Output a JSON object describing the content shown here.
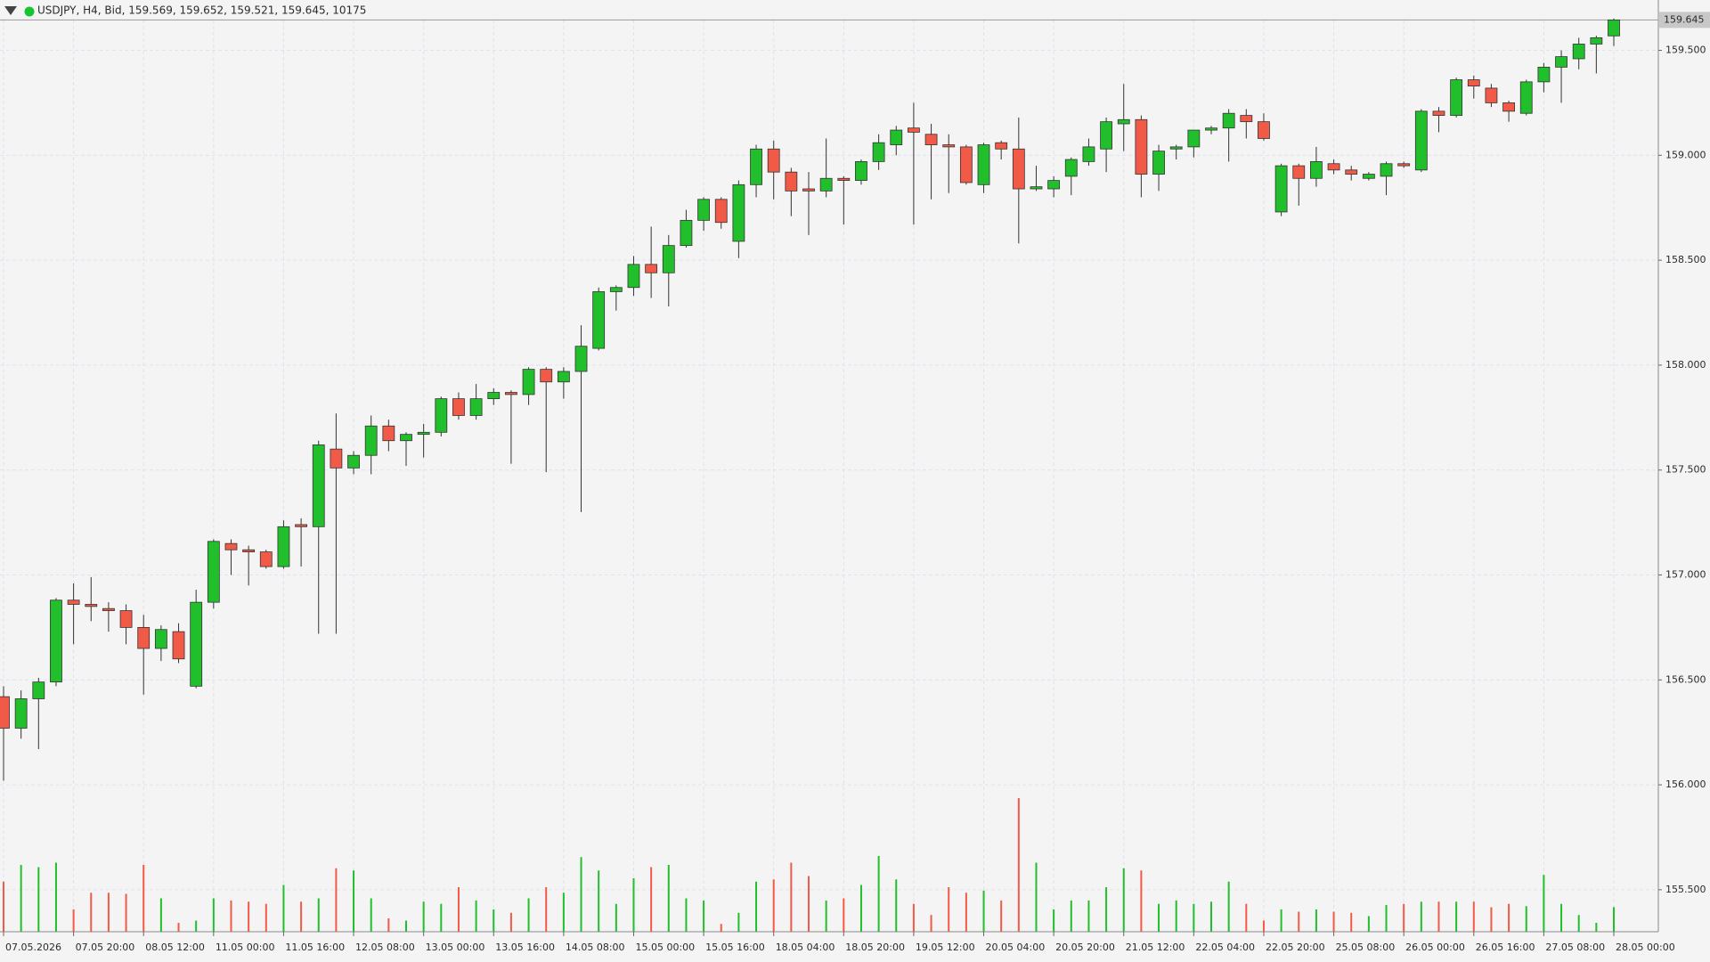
{
  "chart_data": {
    "type": "candlestick",
    "title": "USDJPY, H4, Bid, 159.569, 159.652, 159.521, 159.645, 10175",
    "x": [
      "07.05.2026",
      null,
      null,
      null,
      "07.05 20:00",
      null,
      null,
      null,
      "08.05 12:00",
      null,
      null,
      null,
      "11.05 00:00",
      null,
      null,
      null,
      "11.05 16:00",
      null,
      null,
      null,
      "12.05 08:00",
      null,
      null,
      null,
      "13.05 00:00",
      null,
      null,
      null,
      "13.05 16:00",
      null,
      null,
      null,
      "14.05 08:00",
      null,
      null,
      null,
      "15.05 00:00",
      null,
      null,
      null,
      "15.05 16:00",
      null,
      null,
      null,
      "18.05 04:00",
      null,
      null,
      null,
      "18.05 20:00",
      null,
      null,
      null,
      "19.05 12:00",
      null,
      null,
      null,
      "20.05 04:00",
      null,
      null,
      null,
      "20.05 20:00",
      null,
      null,
      null,
      "21.05 12:00",
      null,
      null,
      null,
      "22.05 04:00",
      null,
      null,
      null,
      "22.05 20:00",
      null,
      null,
      null,
      "25.05 08:00",
      null,
      null,
      null,
      "26.05 00:00",
      null,
      null,
      null,
      "26.05 16:00",
      null,
      null,
      null,
      "27.05 08:00",
      null,
      null,
      null,
      "28.05 00:00"
    ],
    "open": [
      156.42,
      156.27,
      156.41,
      156.49,
      156.88,
      156.86,
      156.84,
      156.83,
      156.75,
      156.65,
      156.73,
      156.47,
      156.87,
      157.15,
      157.12,
      157.11,
      157.04,
      157.24,
      157.23,
      157.6,
      157.51,
      157.57,
      157.71,
      157.64,
      157.67,
      157.68,
      157.84,
      157.76,
      157.84,
      157.87,
      157.86,
      157.98,
      157.92,
      157.97,
      158.08,
      158.35,
      158.37,
      158.48,
      158.44,
      158.57,
      158.69,
      158.79,
      158.59,
      158.86,
      159.03,
      158.92,
      158.84,
      158.83,
      158.89,
      158.88,
      158.97,
      159.05,
      159.13,
      159.1,
      159.05,
      159.04,
      158.86,
      159.06,
      159.03,
      158.84,
      158.84,
      158.9,
      158.97,
      159.03,
      159.15,
      159.17,
      158.91,
      159.03,
      159.04,
      159.12,
      159.13,
      159.19,
      159.16,
      158.73,
      158.95,
      158.89,
      158.96,
      158.93,
      158.89,
      158.9,
      158.96,
      158.93,
      159.21,
      159.19,
      159.36,
      159.32,
      159.25,
      159.2,
      159.35,
      159.42,
      159.46,
      159.53,
      159.569
    ],
    "high": [
      156.47,
      156.45,
      156.51,
      156.89,
      156.96,
      156.99,
      156.87,
      156.86,
      156.81,
      156.76,
      156.77,
      156.93,
      157.17,
      157.17,
      157.14,
      157.12,
      157.26,
      157.27,
      157.64,
      157.77,
      157.59,
      157.76,
      157.74,
      157.68,
      157.72,
      157.85,
      157.87,
      157.91,
      157.89,
      157.88,
      157.99,
      157.99,
      157.99,
      158.19,
      158.37,
      158.38,
      158.52,
      158.66,
      158.62,
      158.74,
      158.8,
      158.8,
      158.88,
      159.05,
      159.07,
      158.94,
      158.92,
      159.08,
      158.9,
      158.98,
      159.1,
      159.14,
      159.25,
      159.15,
      159.1,
      159.05,
      159.06,
      159.07,
      159.18,
      158.95,
      158.9,
      158.99,
      159.08,
      159.18,
      159.34,
      159.19,
      159.05,
      159.05,
      159.12,
      159.14,
      159.22,
      159.22,
      159.2,
      158.96,
      158.96,
      159.04,
      158.98,
      158.95,
      158.92,
      158.97,
      158.97,
      159.22,
      159.23,
      159.37,
      159.38,
      159.34,
      159.26,
      159.36,
      159.44,
      159.5,
      159.56,
      159.57,
      159.652
    ],
    "low": [
      156.02,
      156.22,
      156.17,
      156.47,
      156.67,
      156.78,
      156.73,
      156.67,
      156.43,
      156.59,
      156.58,
      156.46,
      156.84,
      157.0,
      156.95,
      157.03,
      157.03,
      157.04,
      156.72,
      156.72,
      157.48,
      157.48,
      157.59,
      157.52,
      157.56,
      157.66,
      157.74,
      157.74,
      157.81,
      157.53,
      157.81,
      157.49,
      157.84,
      157.3,
      158.07,
      158.26,
      158.33,
      158.32,
      158.28,
      158.56,
      158.64,
      158.65,
      158.51,
      158.8,
      158.79,
      158.71,
      158.62,
      158.8,
      158.67,
      158.86,
      158.93,
      159.0,
      158.67,
      158.79,
      158.82,
      158.86,
      158.82,
      158.98,
      158.58,
      158.83,
      158.8,
      158.81,
      158.95,
      158.92,
      159.02,
      158.8,
      158.83,
      158.98,
      158.99,
      159.1,
      158.97,
      159.08,
      159.07,
      158.71,
      158.76,
      158.85,
      158.91,
      158.88,
      158.88,
      158.81,
      158.94,
      158.92,
      159.11,
      159.18,
      159.27,
      159.23,
      159.16,
      159.19,
      159.3,
      159.25,
      159.41,
      159.39,
      159.521
    ],
    "close": [
      156.27,
      156.41,
      156.49,
      156.88,
      156.86,
      156.85,
      156.83,
      156.75,
      156.65,
      156.74,
      156.6,
      156.87,
      157.16,
      157.12,
      157.11,
      157.04,
      157.23,
      157.23,
      157.62,
      157.51,
      157.57,
      157.71,
      157.64,
      157.67,
      157.68,
      157.84,
      157.76,
      157.84,
      157.87,
      157.86,
      157.98,
      157.92,
      157.97,
      158.09,
      158.35,
      158.37,
      158.48,
      158.44,
      158.57,
      158.69,
      158.79,
      158.68,
      158.86,
      159.03,
      158.92,
      158.83,
      158.83,
      158.89,
      158.88,
      158.97,
      159.06,
      159.12,
      159.11,
      159.05,
      159.04,
      158.87,
      159.05,
      159.03,
      158.84,
      158.85,
      158.88,
      158.98,
      159.04,
      159.16,
      159.17,
      158.91,
      159.02,
      159.04,
      159.12,
      159.13,
      159.2,
      159.16,
      159.08,
      158.95,
      158.89,
      158.97,
      158.93,
      158.91,
      158.91,
      158.96,
      158.95,
      159.21,
      159.19,
      159.36,
      159.33,
      159.25,
      159.21,
      159.35,
      159.42,
      159.47,
      159.53,
      159.56,
      159.645
    ],
    "volume": [
      20700,
      27600,
      26680,
      28520,
      9200,
      16100,
      16100,
      15640,
      27600,
      13800,
      3680,
      4600,
      13800,
      12880,
      12420,
      11500,
      19320,
      12420,
      13800,
      26220,
      25300,
      13800,
      5520,
      4600,
      12420,
      11500,
      18400,
      12880,
      9200,
      7820,
      13800,
      18400,
      16100,
      30820,
      25300,
      11500,
      22080,
      26680,
      27600,
      13800,
      12880,
      3220,
      7820,
      20700,
      21620,
      28520,
      23000,
      12880,
      13800,
      19320,
      31280,
      21620,
      11500,
      6900,
      18400,
      16100,
      17020,
      12880,
      55200,
      28520,
      9200,
      12880,
      12880,
      18400,
      26220,
      25300,
      11500,
      12880,
      11500,
      12420,
      20700,
      11500,
      4600,
      9200,
      8280,
      9200,
      8280,
      7820,
      6440,
      11040,
      11500,
      12420,
      12420,
      12420,
      12420,
      10120,
      11500,
      10580,
      23460,
      11500,
      6900,
      3680,
      10175
    ],
    "up_color": "#22bf2c",
    "down_color": "#f25a48",
    "last_price": 159.645,
    "ylim": [
      155.3,
      159.74
    ],
    "yticks": [
      {
        "value": 155.5,
        "label": "155.500"
      },
      {
        "value": 156.0,
        "label": "156.000"
      },
      {
        "value": 156.5,
        "label": "156.500"
      },
      {
        "value": 157.0,
        "label": "157.000"
      },
      {
        "value": 157.5,
        "label": "157.500"
      },
      {
        "value": 158.0,
        "label": "158.000"
      },
      {
        "value": 158.5,
        "label": "158.500"
      },
      {
        "value": 159.0,
        "label": "159.000"
      },
      {
        "value": 159.5,
        "label": "159.500"
      }
    ],
    "grid": true
  }
}
